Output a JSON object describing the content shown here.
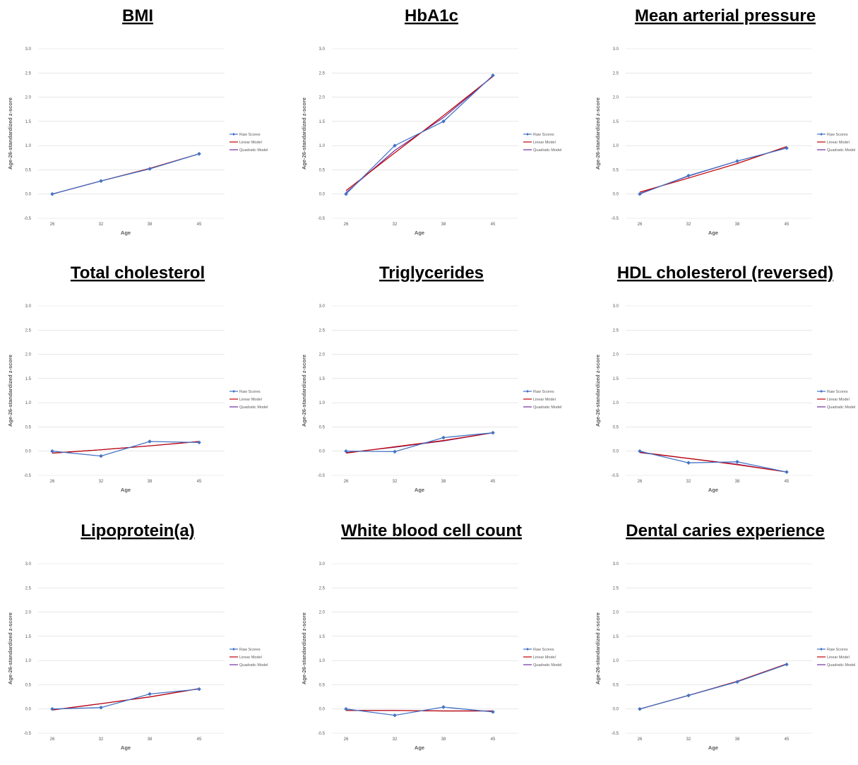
{
  "colors": {
    "raw": "#4472C4",
    "linear": "#C00000",
    "quadratic": "#7030A0",
    "grid": "#D9D9D9",
    "text": "#595959"
  },
  "chart_data": [
    {
      "type": "line",
      "title": "BMI",
      "xlabel": "Age",
      "ylabel": "Age-26-standardized z-score",
      "categories": [
        "26",
        "32",
        "38",
        "45"
      ],
      "ylim": [
        -0.5,
        3.0
      ],
      "yticks": [
        "3.0",
        "2.5",
        "2.0",
        "1.5",
        "1.0",
        "0.5",
        "0.0",
        "-0.5"
      ],
      "grid": true,
      "legend": "right",
      "series": [
        {
          "name": "Raw Scores",
          "values": [
            0.0,
            0.27,
            0.52,
            0.83
          ]
        },
        {
          "name": "Linear Model",
          "values": [
            0.0,
            0.27,
            0.53,
            0.83
          ]
        },
        {
          "name": "Quadratic Model",
          "values": [
            0.0,
            0.27,
            0.53,
            0.83
          ]
        }
      ]
    },
    {
      "type": "line",
      "title": "HbA1c",
      "xlabel": "Age",
      "ylabel": "Age-26-standardized z-score",
      "categories": [
        "26",
        "32",
        "38",
        "45"
      ],
      "ylim": [
        -0.5,
        3.0
      ],
      "yticks": [
        "3.0",
        "2.5",
        "2.0",
        "1.5",
        "1.0",
        "0.5",
        "0.0",
        "-0.5"
      ],
      "grid": true,
      "legend": "right",
      "series": [
        {
          "name": "Raw Scores",
          "values": [
            0.0,
            1.0,
            1.5,
            2.45
          ]
        },
        {
          "name": "Linear Model",
          "values": [
            0.07,
            0.85,
            1.62,
            2.43
          ]
        },
        {
          "name": "Quadratic Model",
          "values": [
            0.03,
            0.9,
            1.58,
            2.43
          ]
        }
      ]
    },
    {
      "type": "line",
      "title": "Mean arterial pressure",
      "xlabel": "Age",
      "ylabel": "Age-26-standardized z-score",
      "categories": [
        "26",
        "32",
        "38",
        "45"
      ],
      "ylim": [
        -0.5,
        3.0
      ],
      "yticks": [
        "3.0",
        "2.5",
        "2.0",
        "1.5",
        "1.0",
        "0.5",
        "0.0",
        "-0.5"
      ],
      "grid": true,
      "legend": "right",
      "series": [
        {
          "name": "Raw Scores",
          "values": [
            0.0,
            0.38,
            0.68,
            0.95
          ]
        },
        {
          "name": "Linear Model",
          "values": [
            0.04,
            0.33,
            0.63,
            0.98
          ]
        },
        {
          "name": "Quadratic Model",
          "values": [
            0.01,
            0.37,
            0.68,
            0.95
          ]
        }
      ]
    },
    {
      "type": "line",
      "title": "Total cholesterol",
      "xlabel": "Age",
      "ylabel": "Age-26-standardized z-score",
      "categories": [
        "26",
        "32",
        "38",
        "45"
      ],
      "ylim": [
        -0.5,
        3.0
      ],
      "yticks": [
        "3.0",
        "2.5",
        "2.0",
        "1.5",
        "1.0",
        "0.5",
        "0.0",
        "-0.5"
      ],
      "grid": true,
      "legend": "right",
      "series": [
        {
          "name": "Raw Scores",
          "values": [
            0.0,
            -0.1,
            0.2,
            0.18
          ]
        },
        {
          "name": "Linear Model",
          "values": [
            -0.04,
            0.03,
            0.11,
            0.2
          ]
        },
        {
          "name": "Quadratic Model",
          "values": [
            -0.04,
            0.03,
            0.11,
            0.2
          ]
        }
      ]
    },
    {
      "type": "line",
      "title": "Triglycerides",
      "xlabel": "Age",
      "ylabel": "Age-26-standardized z-score",
      "categories": [
        "26",
        "32",
        "38",
        "45"
      ],
      "ylim": [
        -0.5,
        3.0
      ],
      "yticks": [
        "3.0",
        "2.5",
        "2.0",
        "1.5",
        "1.0",
        "0.5",
        "0.0",
        "-0.5"
      ],
      "grid": true,
      "legend": "right",
      "series": [
        {
          "name": "Raw Scores",
          "values": [
            0.0,
            -0.01,
            0.28,
            0.38
          ]
        },
        {
          "name": "Linear Model",
          "values": [
            -0.04,
            0.09,
            0.22,
            0.38
          ]
        },
        {
          "name": "Quadratic Model",
          "values": [
            -0.03,
            0.08,
            0.21,
            0.38
          ]
        }
      ]
    },
    {
      "type": "line",
      "title": "HDL cholesterol (reversed)",
      "xlabel": "Age",
      "ylabel": "Age-26-standardized z-score",
      "categories": [
        "26",
        "32",
        "38",
        "45"
      ],
      "ylim": [
        -0.5,
        3.0
      ],
      "yticks": [
        "3.0",
        "2.5",
        "2.0",
        "1.5",
        "1.0",
        "0.5",
        "0.0",
        "-0.5"
      ],
      "grid": true,
      "legend": "right",
      "series": [
        {
          "name": "Raw Scores",
          "values": [
            0.0,
            -0.24,
            -0.22,
            -0.43
          ]
        },
        {
          "name": "Linear Model",
          "values": [
            -0.02,
            -0.15,
            -0.28,
            -0.43
          ]
        },
        {
          "name": "Quadratic Model",
          "values": [
            -0.03,
            -0.15,
            -0.27,
            -0.43
          ]
        }
      ]
    },
    {
      "type": "line",
      "title": "Lipoprotein(a)",
      "xlabel": "Age",
      "ylabel": "Age-26-standardized z-score",
      "categories": [
        "26",
        "32",
        "38",
        "45"
      ],
      "ylim": [
        -0.5,
        3.0
      ],
      "yticks": [
        "3.0",
        "2.5",
        "2.0",
        "1.5",
        "1.0",
        "0.5",
        "0.0",
        "-0.5"
      ],
      "grid": true,
      "legend": "right",
      "series": [
        {
          "name": "Raw Scores",
          "values": [
            0.0,
            0.03,
            0.31,
            0.41
          ]
        },
        {
          "name": "Linear Model",
          "values": [
            -0.02,
            0.11,
            0.25,
            0.42
          ]
        },
        {
          "name": "Quadratic Model",
          "values": [
            -0.02,
            0.11,
            0.25,
            0.42
          ]
        }
      ]
    },
    {
      "type": "line",
      "title": "White blood cell count",
      "xlabel": "Age",
      "ylabel": "Age-26-standardized z-score",
      "categories": [
        "26",
        "32",
        "38",
        "45"
      ],
      "ylim": [
        -0.5,
        3.0
      ],
      "yticks": [
        "3.0",
        "2.5",
        "2.0",
        "1.5",
        "1.0",
        "0.5",
        "0.0",
        "-0.5"
      ],
      "grid": true,
      "legend": "right",
      "series": [
        {
          "name": "Raw Scores",
          "values": [
            0.0,
            -0.13,
            0.04,
            -0.06
          ]
        },
        {
          "name": "Linear Model",
          "values": [
            -0.03,
            -0.03,
            -0.04,
            -0.04
          ]
        },
        {
          "name": "Quadratic Model",
          "values": [
            -0.03,
            -0.03,
            -0.04,
            -0.04
          ]
        }
      ]
    },
    {
      "type": "line",
      "title": "Dental caries experience",
      "xlabel": "Age",
      "ylabel": "Age-26-standardized z-score",
      "categories": [
        "26",
        "32",
        "38",
        "45"
      ],
      "ylim": [
        -0.5,
        3.0
      ],
      "yticks": [
        "3.0",
        "2.5",
        "2.0",
        "1.5",
        "1.0",
        "0.5",
        "0.0",
        "-0.5"
      ],
      "grid": true,
      "legend": "right",
      "series": [
        {
          "name": "Raw Scores",
          "values": [
            0.0,
            0.28,
            0.56,
            0.92
          ]
        },
        {
          "name": "Linear Model",
          "values": [
            0.0,
            0.28,
            0.57,
            0.93
          ]
        },
        {
          "name": "Quadratic Model",
          "values": [
            0.0,
            0.28,
            0.57,
            0.93
          ]
        }
      ]
    }
  ]
}
